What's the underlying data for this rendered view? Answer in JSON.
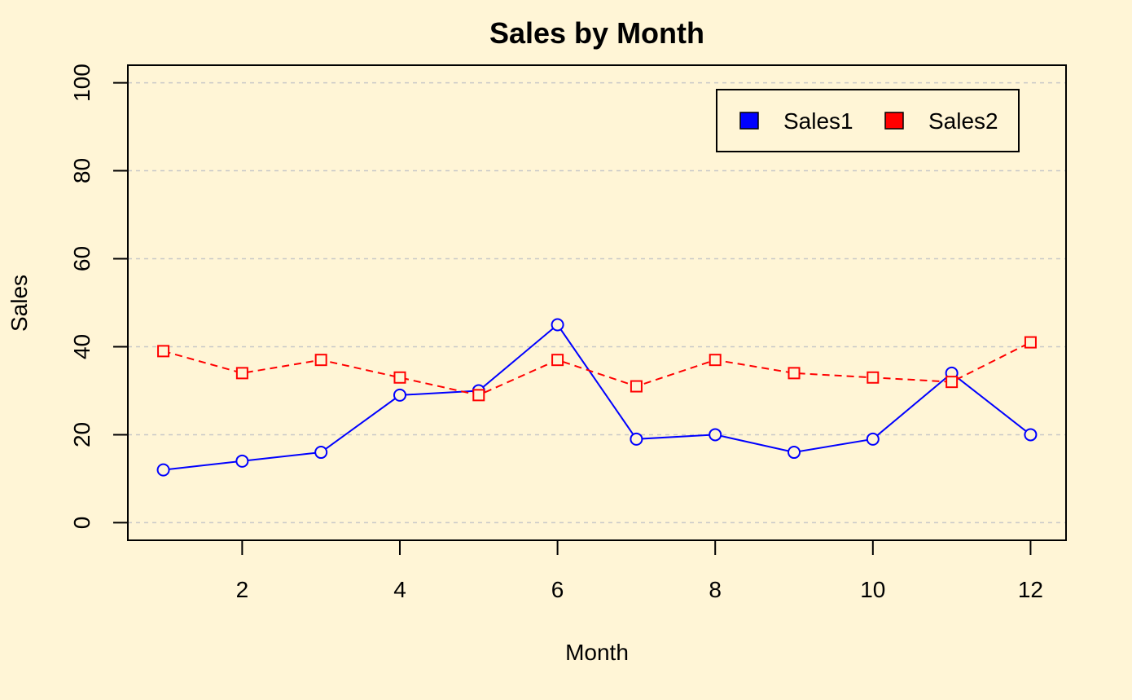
{
  "colors": {
    "background": "#FFF5D6",
    "series1": "#0000FF",
    "series2": "#FF0000",
    "grid": "#C8C8C8",
    "axis": "#000000"
  },
  "chart_data": {
    "type": "line",
    "title": "Sales by Month",
    "xlabel": "Month",
    "ylabel": "Sales",
    "x": [
      1,
      2,
      3,
      4,
      5,
      6,
      7,
      8,
      9,
      10,
      11,
      12
    ],
    "xlim": [
      0.55,
      12.45
    ],
    "ylim": [
      -4,
      104
    ],
    "xticks": [
      2,
      4,
      6,
      8,
      10,
      12
    ],
    "yticks": [
      0,
      20,
      40,
      60,
      80,
      100
    ],
    "grid": "horizontal dashed",
    "legend_position": "top-right",
    "series": [
      {
        "name": "Sales1",
        "values": [
          12,
          14,
          16,
          29,
          30,
          45,
          19,
          20,
          16,
          19,
          34,
          20
        ],
        "color": "#0000FF",
        "line_style": "solid",
        "marker": "circle"
      },
      {
        "name": "Sales2",
        "values": [
          39,
          34,
          37,
          33,
          29,
          37,
          31,
          37,
          34,
          33,
          32,
          41
        ],
        "color": "#FF0000",
        "line_style": "dashed",
        "marker": "square"
      }
    ]
  }
}
